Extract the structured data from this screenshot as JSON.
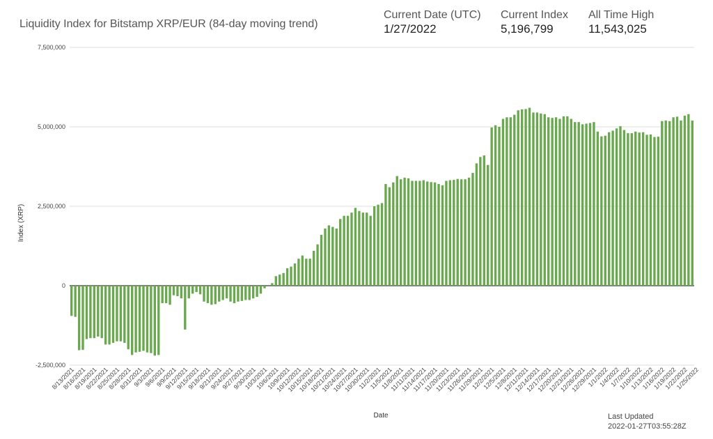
{
  "title": "Liquidity Index for Bitstamp XRP/EUR (84-day moving trend)",
  "stats": [
    {
      "label": "Current Date (UTC)",
      "value": "1/27/2022"
    },
    {
      "label": "Current Index",
      "value": "5,196,799"
    },
    {
      "label": "All Time High",
      "value": "11,543,025"
    }
  ],
  "last_updated": {
    "label": "Last Updated",
    "value": "2022-01-27T03:55:28Z"
  },
  "colors": {
    "bar": "#6aa84f",
    "grid": "#dddddd",
    "axis": "#333333"
  },
  "chart_data": {
    "type": "bar",
    "title": "Liquidity Index for Bitstamp XRP/EUR (84-day moving trend)",
    "xlabel": "Date",
    "ylabel": "Index (XRP)",
    "ylim": [
      -2500000,
      7500000
    ],
    "yticks": [
      -2500000,
      0,
      2500000,
      5000000,
      7500000
    ],
    "ytick_labels": [
      "-2,500,000",
      "0",
      "2,500,000",
      "5,000,000",
      "7,500,000"
    ],
    "start_date": "8/13/2021",
    "xtick_labels": [
      "8/13/2021",
      "8/16/2021",
      "8/19/2021",
      "8/22/2021",
      "8/25/2021",
      "8/28/2021",
      "8/31/2021",
      "9/3/2021",
      "9/6/2021",
      "9/9/2021",
      "9/12/2021",
      "9/15/2021",
      "9/18/2021",
      "9/21/2021",
      "9/24/2021",
      "9/27/2021",
      "9/30/2021",
      "10/3/2021",
      "10/6/2021",
      "10/9/2021",
      "10/12/2021",
      "10/15/2021",
      "10/18/2021",
      "10/21/2021",
      "10/24/2021",
      "10/27/2021",
      "10/30/2021",
      "11/2/2021",
      "11/5/2021",
      "11/8/2021",
      "11/11/2021",
      "11/14/2021",
      "11/17/2021",
      "11/20/2021",
      "11/23/2021",
      "11/26/2021",
      "11/29/2021",
      "12/2/2021",
      "12/5/2021",
      "12/8/2021",
      "12/11/2021",
      "12/14/2021",
      "12/17/2021",
      "12/20/2021",
      "12/23/2021",
      "12/26/2021",
      "12/29/2021",
      "1/1/2022",
      "1/4/2022",
      "1/7/2022",
      "1/10/2022",
      "1/13/2022",
      "1/16/2022",
      "1/19/2022",
      "1/22/2022",
      "1/25/2022"
    ],
    "grid": true,
    "legend": "none",
    "series": [
      {
        "values": [
          -950000,
          -980000,
          -2030000,
          -2020000,
          -1680000,
          -1650000,
          -1650000,
          -1600000,
          -1650000,
          -1850000,
          -1850000,
          -1800000,
          -1750000,
          -1750000,
          -1800000,
          -2000000,
          -2180000,
          -2100000,
          -2080000,
          -2050000,
          -2100000,
          -2120000,
          -2200000,
          -2180000,
          -550000,
          -550000,
          -600000,
          -300000,
          -330000,
          -400000,
          -1380000,
          -400000,
          -250000,
          -200000,
          -270000,
          -500000,
          -550000,
          -600000,
          -580000,
          -500000,
          -450000,
          -400000,
          -500000,
          -550000,
          -500000,
          -480000,
          -450000,
          -450000,
          -400000,
          -350000,
          -250000,
          -80000,
          0,
          80000,
          300000,
          350000,
          400000,
          550000,
          600000,
          700000,
          850000,
          950000,
          850000,
          850000,
          1100000,
          1300000,
          1600000,
          1800000,
          1900000,
          1850000,
          1800000,
          2100000,
          2200000,
          2200000,
          2300000,
          2450000,
          2350000,
          2300000,
          2300000,
          2200000,
          2500000,
          2550000,
          2600000,
          3200000,
          3100000,
          3250000,
          3450000,
          3350000,
          3400000,
          3380000,
          3300000,
          3300000,
          3300000,
          3320000,
          3280000,
          3260000,
          3250000,
          3200000,
          3160000,
          3300000,
          3320000,
          3330000,
          3360000,
          3350000,
          3350000,
          3400000,
          3550000,
          3850000,
          4050000,
          4100000,
          3800000,
          4980000,
          5050000,
          5000000,
          5250000,
          5300000,
          5300000,
          5380000,
          5520000,
          5550000,
          5560000,
          5600000,
          5450000,
          5450000,
          5420000,
          5400000,
          5300000,
          5280000,
          5300000,
          5250000,
          5330000,
          5330000,
          5250000,
          5150000,
          5150000,
          5080000,
          5100000,
          5120000,
          5150000,
          4850000,
          4700000,
          4720000,
          4830000,
          4880000,
          4950000,
          5020000,
          4900000,
          4800000,
          4800000,
          4850000,
          4820000,
          4830000,
          4750000,
          4760000,
          4680000,
          4690000,
          5180000,
          5200000,
          5180000,
          5300000,
          5320000,
          5200000,
          5350000,
          5400000,
          5196799
        ]
      }
    ]
  }
}
